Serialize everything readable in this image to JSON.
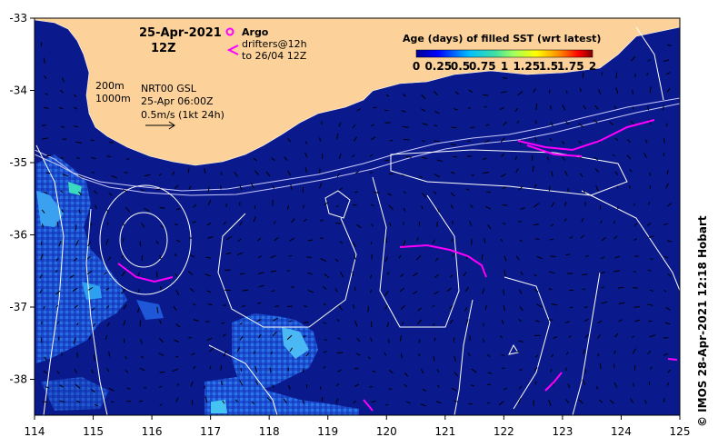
{
  "header": {
    "date": "25-Apr-2021",
    "time": "12Z"
  },
  "argo_legend": {
    "argo_label": "Argo",
    "drifters_label_1": "drifters@12h",
    "drifters_label_2": "to 26/04 12Z",
    "argo_color": "#ff00ff"
  },
  "info_block": {
    "contour_200": "200m",
    "contour_1000": "1000m",
    "product": "NRT00 GSL",
    "product_time": "25-Apr 06:00Z",
    "scale": "0.5m/s (1kt 24h)"
  },
  "colorbar": {
    "title": "Age (days) of filled SST (wrt latest)",
    "tick_labels": [
      "0",
      "0.25",
      "0.5",
      "0.75",
      "1",
      "1.25",
      "1.5",
      "1.75",
      "2"
    ]
  },
  "axes": {
    "x_ticks": [
      "114",
      "115",
      "116",
      "117",
      "118",
      "119",
      "120",
      "121",
      "122",
      "123",
      "124",
      "125"
    ],
    "y_ticks": [
      "-33",
      "-34",
      "-35",
      "-36",
      "-37",
      "-38"
    ]
  },
  "credit": "© IMOS 28-Apr-2021 12:18 Hobart",
  "colors": {
    "ocean": "#0a1a8c",
    "land": "#fcd29a",
    "contour": "#ffffff",
    "vector": "#000000",
    "drifter": "#ff00ff"
  }
}
